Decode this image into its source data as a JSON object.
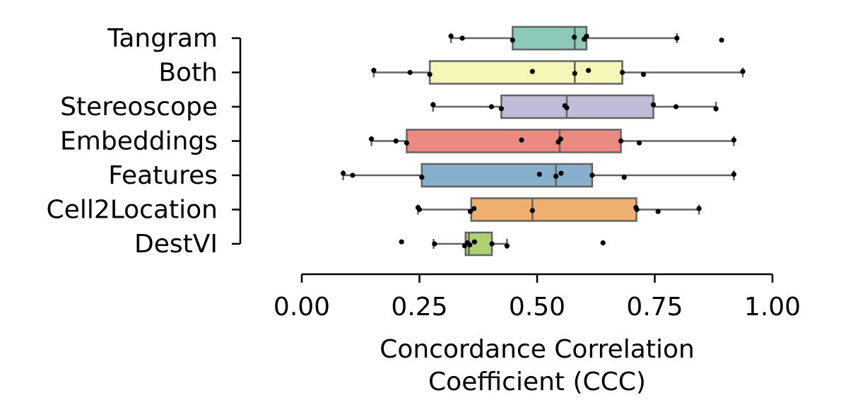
{
  "chart_data": {
    "type": "box",
    "orientation": "horizontal",
    "title": "",
    "xlabel_lines": [
      "Concordance Correlation",
      "Coefficient (CCC)"
    ],
    "ylabel": "",
    "xlim": [
      0.0,
      1.0
    ],
    "xticks": [
      0.0,
      0.25,
      0.5,
      0.75,
      1.0
    ],
    "xtick_labels": [
      "0.00",
      "0.25",
      "0.50",
      "0.75",
      "1.00"
    ],
    "grid": false,
    "categories": [
      "Tangram",
      "Both",
      "Stereoscope",
      "Embeddings",
      "Features",
      "Cell2Location",
      "DestVI"
    ],
    "colors": [
      "#8dc9bb",
      "#f6f6b6",
      "#bfbcd8",
      "#ea8a80",
      "#87afcb",
      "#eeb06f",
      "#acd271"
    ],
    "edge_color": "#626262",
    "point_color": "#000000",
    "series": [
      {
        "category": "Tangram",
        "whisker_low": 0.317,
        "q1": 0.448,
        "median": 0.58,
        "q3": 0.605,
        "whisker_high": 0.797,
        "points": [
          0.317,
          0.341,
          0.448,
          0.579,
          0.6,
          0.605,
          0.797,
          0.892
        ]
      },
      {
        "category": "Both",
        "whisker_low": 0.153,
        "q1": 0.272,
        "median": 0.58,
        "q3": 0.681,
        "whisker_high": 0.937,
        "points": [
          0.153,
          0.23,
          0.272,
          0.49,
          0.58,
          0.609,
          0.681,
          0.726,
          0.937
        ]
      },
      {
        "category": "Stereoscope",
        "whisker_low": 0.279,
        "q1": 0.424,
        "median": 0.563,
        "q3": 0.747,
        "whisker_high": 0.88,
        "points": [
          0.279,
          0.403,
          0.424,
          0.559,
          0.563,
          0.747,
          0.795,
          0.88
        ]
      },
      {
        "category": "Embeddings",
        "whisker_low": 0.148,
        "q1": 0.223,
        "median": 0.548,
        "q3": 0.678,
        "whisker_high": 0.918,
        "points": [
          0.148,
          0.2,
          0.223,
          0.467,
          0.545,
          0.55,
          0.678,
          0.717,
          0.918
        ]
      },
      {
        "category": "Features",
        "whisker_low": 0.088,
        "q1": 0.255,
        "median": 0.54,
        "q3": 0.617,
        "whisker_high": 0.918,
        "points": [
          0.088,
          0.108,
          0.255,
          0.505,
          0.54,
          0.551,
          0.617,
          0.685,
          0.918
        ]
      },
      {
        "category": "Cell2Location",
        "whisker_low": 0.247,
        "q1": 0.36,
        "median": 0.49,
        "q3": 0.711,
        "whisker_high": 0.844,
        "points": [
          0.247,
          0.25,
          0.358,
          0.366,
          0.49,
          0.71,
          0.712,
          0.757,
          0.844
        ]
      },
      {
        "category": "DestVI",
        "whisker_low": 0.28,
        "q1": 0.348,
        "median": 0.355,
        "q3": 0.404,
        "whisker_high": 0.436,
        "points": [
          0.212,
          0.282,
          0.346,
          0.352,
          0.357,
          0.367,
          0.404,
          0.436,
          0.64
        ]
      }
    ]
  }
}
